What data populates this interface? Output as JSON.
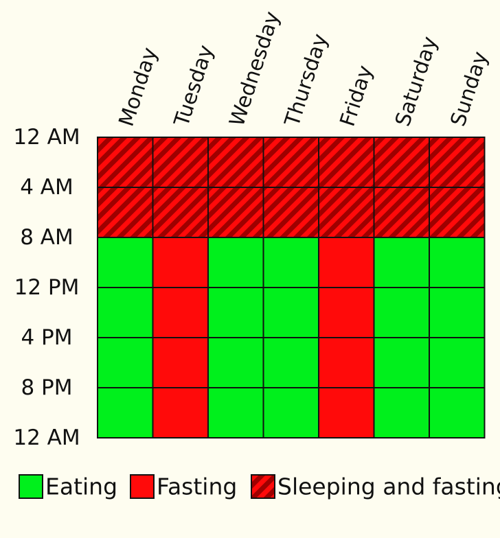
{
  "chart_data": {
    "type": "heatmap",
    "title": "",
    "columns": [
      "Monday",
      "Tuesday",
      "Wednesday",
      "Thursday",
      "Friday",
      "Saturday",
      "Sunday"
    ],
    "row_labels": [
      "12 AM",
      "4 AM",
      "8 AM",
      "12 PM",
      "4 PM",
      "8 PM",
      "12 AM"
    ],
    "cells": [
      [
        "sleeping",
        "sleeping",
        "sleeping",
        "sleeping",
        "sleeping",
        "sleeping",
        "sleeping"
      ],
      [
        "sleeping",
        "sleeping",
        "sleeping",
        "sleeping",
        "sleeping",
        "sleeping",
        "sleeping"
      ],
      [
        "eating",
        "fasting",
        "eating",
        "eating",
        "fasting",
        "eating",
        "eating"
      ],
      [
        "eating",
        "fasting",
        "eating",
        "eating",
        "fasting",
        "eating",
        "eating"
      ],
      [
        "eating",
        "fasting",
        "eating",
        "eating",
        "fasting",
        "eating",
        "eating"
      ],
      [
        "eating",
        "fasting",
        "eating",
        "eating",
        "fasting",
        "eating",
        "eating"
      ]
    ],
    "legend": [
      {
        "key": "eating",
        "label": "Eating",
        "color": "#00f01c"
      },
      {
        "key": "fasting",
        "label": "Fasting",
        "color": "#ff0a0a"
      },
      {
        "key": "sleeping",
        "label": "Sleeping and fasting",
        "color": "#ff0a0a",
        "stripe_color": "#9e0000",
        "pattern": "diagonal-stripes"
      }
    ],
    "legend_position": "bottom",
    "grid": true
  },
  "colors": {
    "background": "#fefdf0",
    "grid_line": "#111111"
  }
}
